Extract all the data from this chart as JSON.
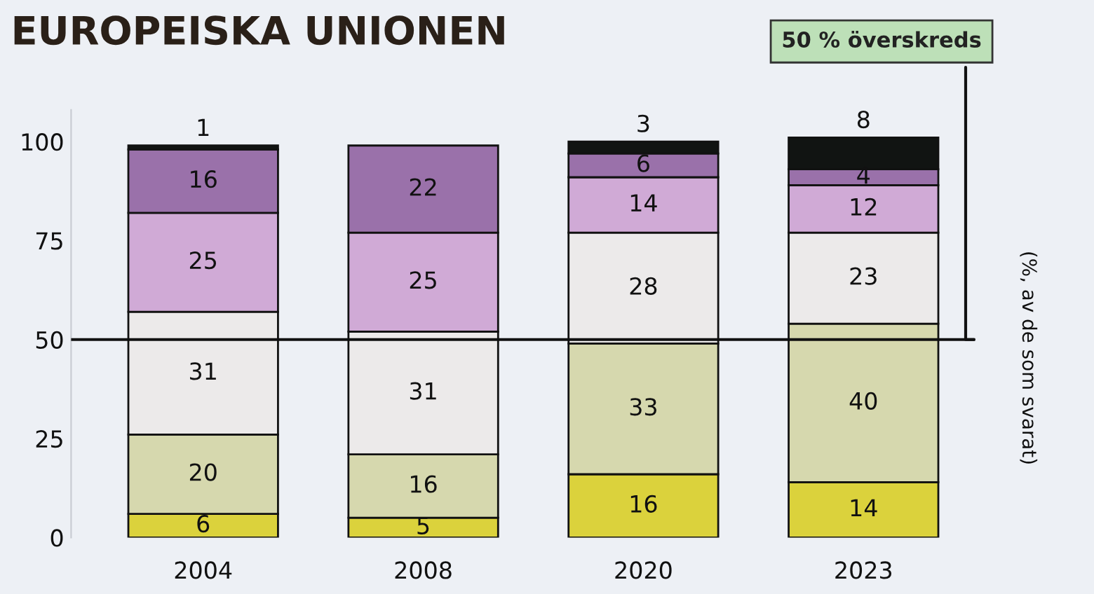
{
  "chart_data": {
    "type": "bar",
    "title": "EUROPEISKA UNIONEN",
    "y2label": "(%, av de som svarat)",
    "categories": [
      "2004",
      "2008",
      "2020",
      "2023"
    ],
    "stacked": true,
    "data_labels": true,
    "series": [
      {
        "color": "#dbd23c",
        "values": [
          6,
          5,
          16,
          14
        ]
      },
      {
        "color": "#d6d8ae",
        "values": [
          20,
          16,
          33,
          40
        ]
      },
      {
        "color": "#eceaea",
        "values": [
          31,
          31,
          28,
          23
        ]
      },
      {
        "color": "#d0aad6",
        "values": [
          25,
          25,
          14,
          12
        ]
      },
      {
        "color": "#9a71aa",
        "values": [
          16,
          22,
          6,
          4
        ]
      },
      {
        "color": "#111412",
        "values": [
          1,
          null,
          3,
          8
        ]
      }
    ],
    "ylim": [
      0,
      108
    ],
    "yticks": [
      0,
      25,
      50,
      75,
      100
    ],
    "grid": false,
    "legend": false,
    "ref_lines": [
      {
        "axis": "y",
        "value": 50,
        "label": "50 % överskreds",
        "color": "#111111"
      }
    ]
  }
}
